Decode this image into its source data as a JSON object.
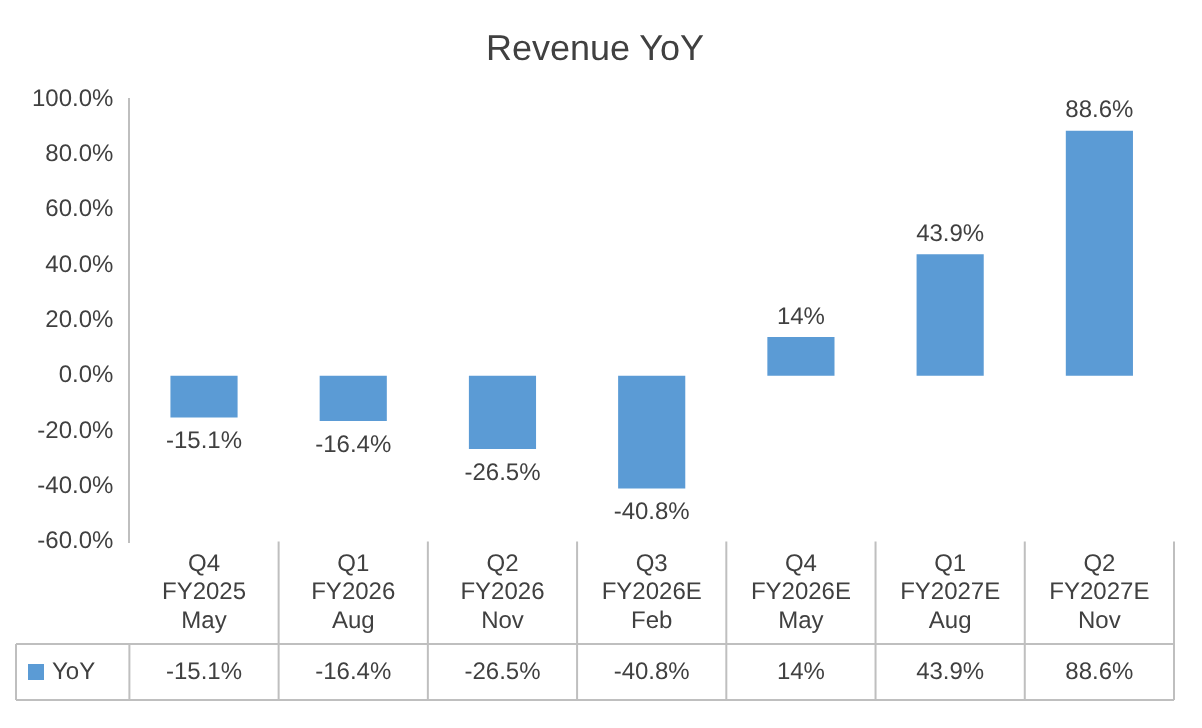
{
  "chart_data": {
    "type": "bar",
    "title": "Revenue YoY",
    "categories": [
      "Q4 FY2025 May",
      "Q1 FY2026 Aug",
      "Q2 FY2026 Nov",
      "Q3 FY2026E Feb",
      "Q4 FY2026E May",
      "Q1 FY2027E Aug",
      "Q2 FY2027E Nov"
    ],
    "series": [
      {
        "name": "YoY",
        "color": "#5b9bd5",
        "values": [
          -15.1,
          -16.4,
          -26.5,
          -40.8,
          14,
          43.9,
          88.6
        ],
        "value_labels": [
          "-15.1%",
          "-16.4%",
          "-26.5%",
          "-40.8%",
          "14%",
          "43.9%",
          "88.6%"
        ]
      }
    ],
    "ylim": [
      -60,
      100
    ],
    "yticks": [
      {
        "value": -60,
        "label": "-60.0%"
      },
      {
        "value": -40,
        "label": "-40.0%"
      },
      {
        "value": -20,
        "label": "-20.0%"
      },
      {
        "value": 0,
        "label": "0.0%"
      },
      {
        "value": 20,
        "label": "20.0%"
      },
      {
        "value": 40,
        "label": "40.0%"
      },
      {
        "value": 60,
        "label": "60.0%"
      },
      {
        "value": 80,
        "label": "80.0%"
      },
      {
        "value": 100,
        "label": "100.0%"
      }
    ],
    "grid": false,
    "legend": "bottom"
  }
}
